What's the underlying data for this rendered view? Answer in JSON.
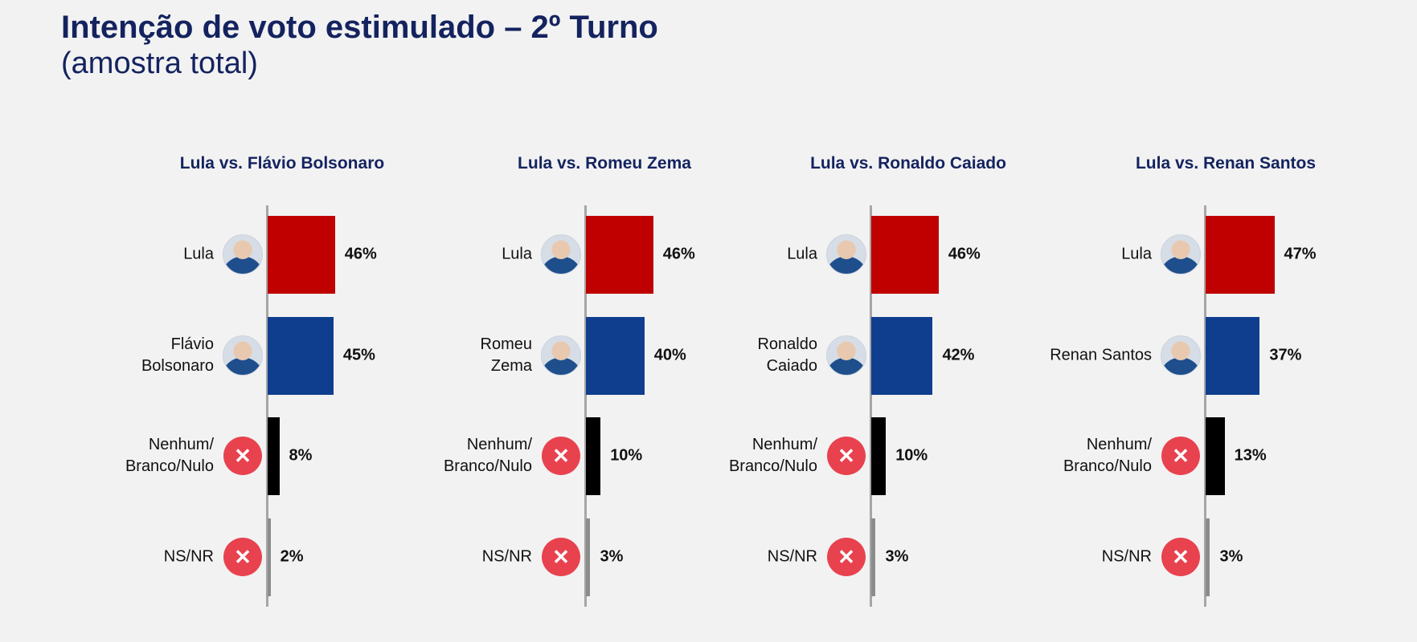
{
  "title": "Intenção de voto estimulado – 2º Turno",
  "subtitle": "(amostra total)",
  "chart_data": [
    {
      "type": "bar",
      "orientation": "horizontal",
      "title": "Lula vs. Flávio Bolsonaro",
      "categories": [
        "Lula",
        "Flávio\nBolsonaro",
        "Nenhum/\nBranco/Nulo",
        "NS/NR"
      ],
      "values": [
        46,
        45,
        8,
        2
      ],
      "value_labels": [
        "46%",
        "45%",
        "8%",
        "2%"
      ],
      "colors": [
        "#c00000",
        "#0f3e8f",
        "#000000",
        "#8c8c8c"
      ]
    },
    {
      "type": "bar",
      "orientation": "horizontal",
      "title": "Lula vs. Romeu Zema",
      "categories": [
        "Lula",
        "Romeu\nZema",
        "Nenhum/\nBranco/Nulo",
        "NS/NR"
      ],
      "values": [
        46,
        40,
        10,
        3
      ],
      "value_labels": [
        "46%",
        "40%",
        "10%",
        "3%"
      ],
      "colors": [
        "#c00000",
        "#0f3e8f",
        "#000000",
        "#8c8c8c"
      ]
    },
    {
      "type": "bar",
      "orientation": "horizontal",
      "title": "Lula vs. Ronaldo Caiado",
      "categories": [
        "Lula",
        "Ronaldo\nCaiado",
        "Nenhum/\nBranco/Nulo",
        "NS/NR"
      ],
      "values": [
        46,
        42,
        10,
        3
      ],
      "value_labels": [
        "46%",
        "42%",
        "10%",
        "3%"
      ],
      "colors": [
        "#c00000",
        "#0f3e8f",
        "#000000",
        "#8c8c8c"
      ]
    },
    {
      "type": "bar",
      "orientation": "horizontal",
      "title": "Lula vs. Renan Santos",
      "categories": [
        "Lula",
        "Renan Santos",
        "Nenhum/\nBranco/Nulo",
        "NS/NR"
      ],
      "values": [
        47,
        37,
        13,
        3
      ],
      "value_labels": [
        "47%",
        "37%",
        "13%",
        "3%"
      ],
      "colors": [
        "#c00000",
        "#0f3e8f",
        "#000000",
        "#8c8c8c"
      ]
    }
  ]
}
